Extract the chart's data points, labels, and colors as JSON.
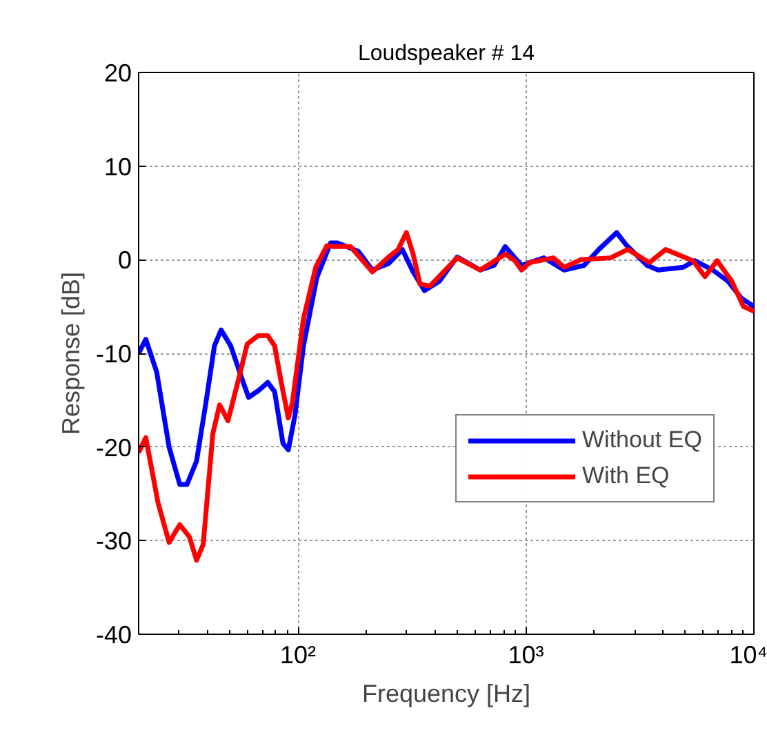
{
  "chart_data": {
    "type": "line",
    "title": "Loudspeaker # 14",
    "xlabel": "Frequency [Hz]",
    "ylabel": "Response [dB]",
    "log": "x",
    "xlim": [
      20,
      10000
    ],
    "xticks": [
      {
        "value": 100,
        "label": "10²"
      },
      {
        "value": 1000,
        "label": "10³"
      },
      {
        "value": 10000,
        "label": "10⁴"
      }
    ],
    "ylim": [
      -40,
      20
    ],
    "yticks": [
      -40,
      -30,
      -20,
      -10,
      0,
      10,
      20
    ],
    "grid": true,
    "legend": "right",
    "line_style": "solid",
    "series": [
      {
        "name": "Without EQ",
        "color": "#0000ff",
        "x": [
          20,
          21.5,
          24,
          27.2,
          30.3,
          32.6,
          35.9,
          39.5,
          43,
          46,
          50.7,
          56.6,
          60.7,
          66.9,
          73.7,
          79,
          85.9,
          90.7,
          97,
          105.7,
          121,
          139,
          149,
          184,
          212,
          250,
          287,
          320,
          359,
          417,
          499,
          630,
          725,
          811,
          956,
          1200,
          1470,
          1800,
          2090,
          2500,
          2750,
          3400,
          3800,
          4900,
          5500,
          6600,
          7700,
          8800,
          10000
        ],
        "values": [
          -10,
          -8.5,
          -12,
          -20,
          -24,
          -24,
          -21.5,
          -15.2,
          -9.2,
          -7.5,
          -9.2,
          -12.6,
          -14.7,
          -14,
          -13.1,
          -14.1,
          -19.6,
          -20.3,
          -16.6,
          -9.2,
          -1.9,
          1.8,
          1.8,
          0.9,
          -1.1,
          -0.4,
          1.1,
          -1.3,
          -3.3,
          -2.3,
          0.3,
          -1.1,
          -0.6,
          1.4,
          -0.6,
          0.2,
          -1.1,
          -0.6,
          1.1,
          2.9,
          1.6,
          -0.6,
          -1.1,
          -0.8,
          -0.1,
          -1.1,
          -2.3,
          -4.1,
          -5
        ]
      },
      {
        "name": "With EQ",
        "color": "#ff0000",
        "x": [
          20,
          21.5,
          24.3,
          27.2,
          30.3,
          33.4,
          35.9,
          38.4,
          42.3,
          45.3,
          49.3,
          54.3,
          59.9,
          66.9,
          73.7,
          79,
          84.6,
          90.7,
          94.6,
          105.7,
          119.7,
          133.8,
          143,
          170,
          212,
          250,
          275,
          299,
          320,
          343,
          379,
          499,
          630,
          811,
          894,
          956,
          1040,
          1320,
          1470,
          1740,
          2350,
          2800,
          3480,
          4100,
          5400,
          6100,
          6900,
          8000,
          9000,
          10000
        ],
        "values": [
          -20.6,
          -19,
          -25.9,
          -30.2,
          -28.3,
          -29.6,
          -32.1,
          -30.4,
          -18.6,
          -15.5,
          -17.2,
          -13.2,
          -9,
          -8.1,
          -8.1,
          -9.2,
          -13.2,
          -16.9,
          -15.2,
          -6.3,
          -0.8,
          1.5,
          1.4,
          1.4,
          -1.3,
          0.3,
          1.1,
          2.9,
          0.6,
          -2.6,
          -2.8,
          0.2,
          -1.1,
          0.6,
          -0.1,
          -1.1,
          -0.3,
          0.2,
          -0.8,
          0,
          0.2,
          1.1,
          -0.3,
          1.1,
          -0.1,
          -1.8,
          -0.1,
          -2.3,
          -5,
          -5.5
        ]
      }
    ]
  }
}
